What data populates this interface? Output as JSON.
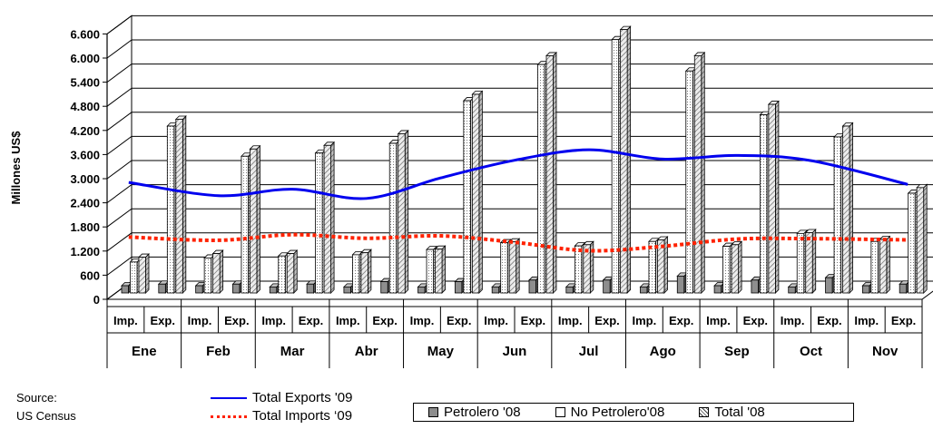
{
  "chart_data": {
    "type": "bar",
    "ylabel": "Millones US$",
    "ylim": [
      0,
      6600
    ],
    "yticks": [
      0,
      600,
      1200,
      1800,
      2400,
      3000,
      3600,
      4200,
      4800,
      5400,
      6000,
      6600
    ],
    "ytick_labels": [
      "0",
      "600",
      "1.200",
      "1.800",
      "2.400",
      "3.000",
      "3.600",
      "4.200",
      "4.800",
      "5.400",
      "6.000",
      "6.600"
    ],
    "grid": true,
    "months": [
      "Ene",
      "Feb",
      "Mar",
      "Abr",
      "May",
      "Jun",
      "Jul",
      "Ago",
      "Sep",
      "Oct",
      "Nov"
    ],
    "sub_categories": [
      "Imp.",
      "Exp."
    ],
    "bar_series": [
      {
        "name": "Petrolero '08",
        "color": "#8c8c8c",
        "pattern": "solid",
        "imp": [
          180,
          180,
          150,
          150,
          150,
          150,
          150,
          150,
          180,
          150,
          180
        ],
        "exp": [
          220,
          220,
          220,
          280,
          280,
          320,
          320,
          420,
          320,
          380,
          220
        ]
      },
      {
        "name": "No Petrolero'08",
        "color": "#ffffff",
        "pattern": "dotted",
        "imp": [
          770,
          870,
          920,
          950,
          1080,
          1250,
          1170,
          1280,
          1160,
          1480,
          1280
        ],
        "exp": [
          4150,
          3400,
          3480,
          3720,
          4780,
          5680,
          6300,
          5520,
          4430,
          3880,
          2480
        ]
      },
      {
        "name": "Total '08",
        "color": "#e0e0e0",
        "pattern": "hatched",
        "imp": [
          890,
          980,
          980,
          1000,
          1090,
          1270,
          1200,
          1320,
          1200,
          1500,
          1330
        ],
        "exp": [
          4320,
          3580,
          3670,
          3960,
          4940,
          5900,
          6550,
          5900,
          4690,
          4150,
          2620
        ]
      }
    ],
    "line_series": [
      {
        "name": "Total Exports '09",
        "color": "#0000ee",
        "style": "solid",
        "values": [
          2750,
          2420,
          2580,
          2350,
          2860,
          3300,
          3560,
          3330,
          3420,
          3290,
          2700
        ]
      },
      {
        "name": "Total Imports  09",
        "color": "#ff2200",
        "style": "dotted",
        "values": [
          1390,
          1310,
          1450,
          1360,
          1420,
          1260,
          1050,
          1160,
          1340,
          1350,
          1320
        ]
      }
    ]
  },
  "legend": {
    "exports_label": "Total Exports '09",
    "imports_label": "Total Imports ‘09",
    "bars": [
      "Petrolero '08",
      "No Petrolero'08",
      "Total '08"
    ]
  },
  "source": {
    "line1": "Source:",
    "line2": "US Census"
  }
}
